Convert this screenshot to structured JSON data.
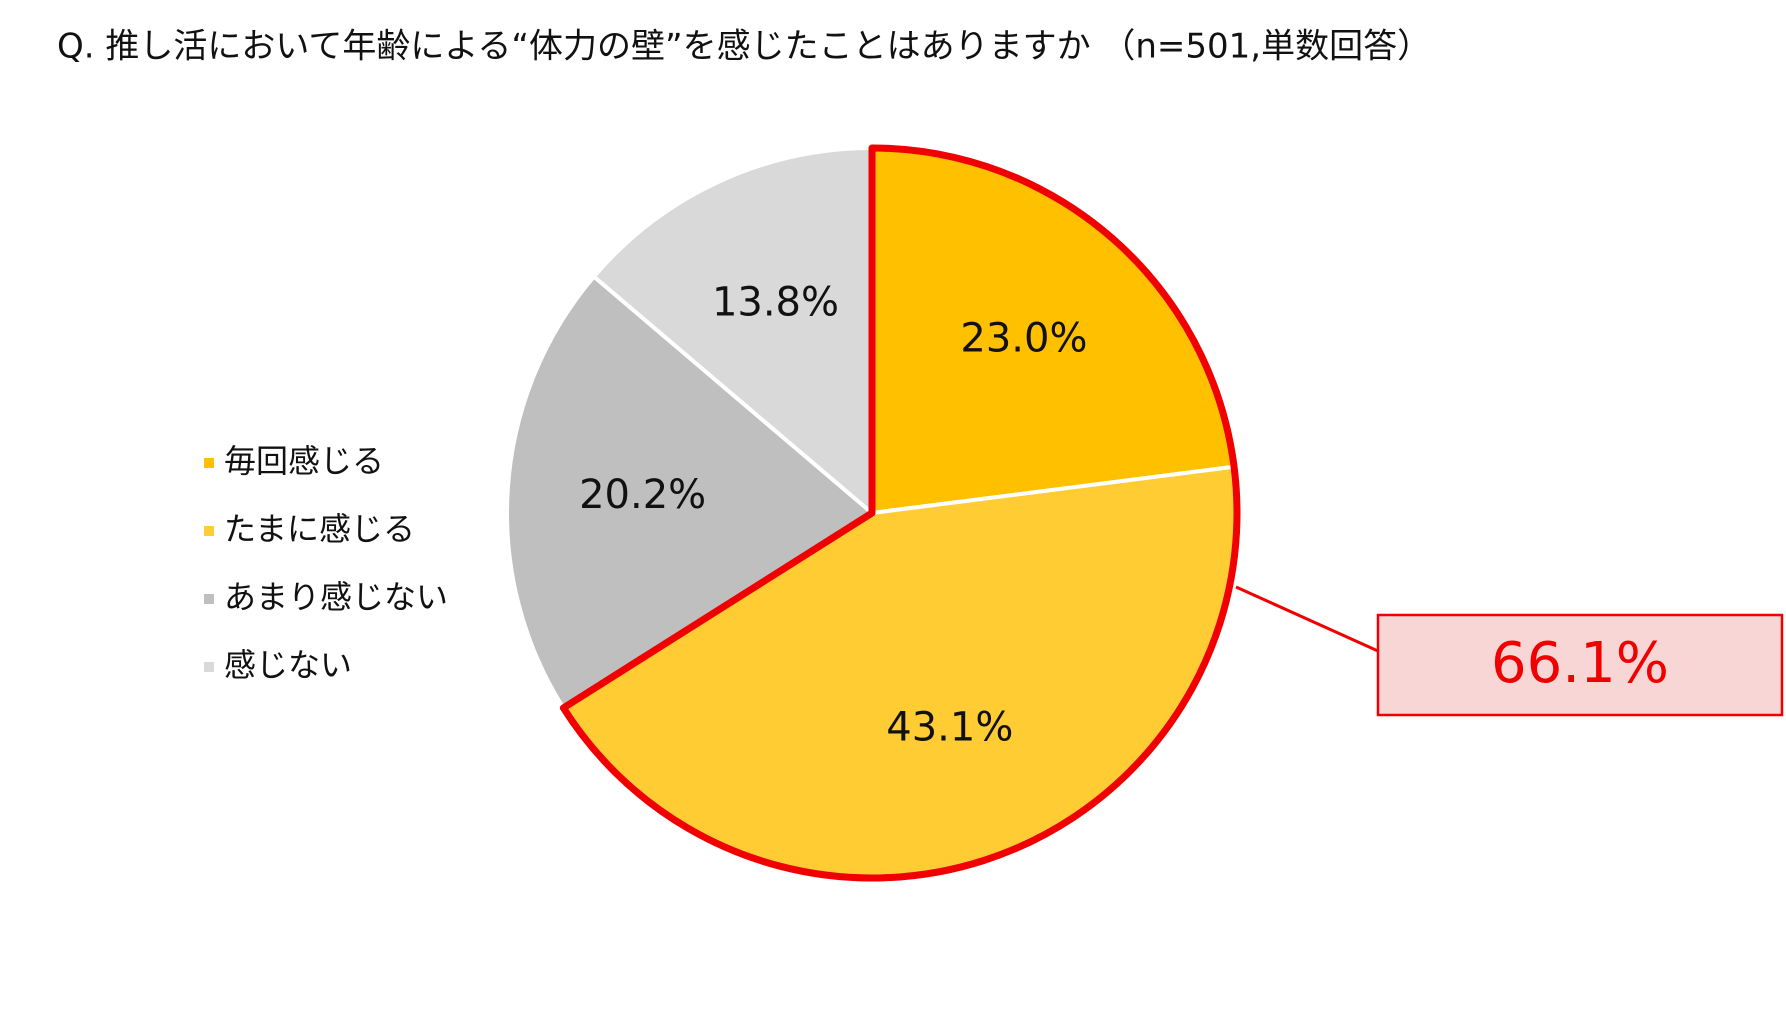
{
  "chart_data": {
    "type": "pie",
    "title": "Q. 推し活において年齢による“体力の壁”を感じたことはありますか （n=501,単数回答）",
    "categories": [
      "毎回感じる",
      "たまに感じる",
      "あまり感じない",
      "感じない"
    ],
    "values": [
      23.0,
      43.1,
      20.2,
      13.8
    ],
    "value_labels": [
      "23.0%",
      "43.1%",
      "20.2%",
      "13.8%"
    ],
    "colors": [
      "#FFC000",
      "#FFCC33",
      "#BFBFBF",
      "#D9D9D9"
    ],
    "highlight": {
      "value": 66.1,
      "label": "66.1%",
      "color": "#F00000",
      "background": "#F9D6D6"
    },
    "legend": "left"
  }
}
